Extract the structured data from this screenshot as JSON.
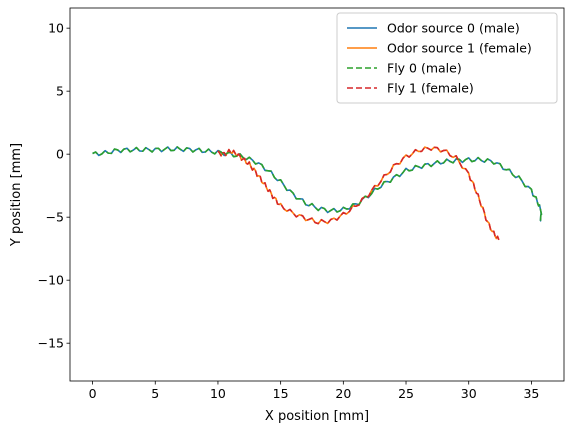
{
  "chart_data": {
    "type": "line",
    "title": "",
    "xlabel": "X position [mm]",
    "ylabel": "Y position [mm]",
    "xlim": [
      -1.8,
      37.6
    ],
    "ylim": [
      -18,
      11.6
    ],
    "xticks": [
      0,
      5,
      10,
      15,
      20,
      25,
      30,
      35
    ],
    "yticks": [
      10,
      5,
      0,
      -5,
      -10,
      -15
    ],
    "ytick_labels": [
      "10",
      "5",
      "0",
      "−5",
      "−10",
      "−15"
    ],
    "grid": false,
    "legend_position": "top-right",
    "series": [
      {
        "name": "Odor source 0 (male)",
        "color": "#1f77b4",
        "dash": "solid",
        "points": [
          [
            0,
            0
          ],
          [
            1,
            0.1
          ],
          [
            2,
            0.3
          ],
          [
            3,
            0.35
          ],
          [
            4,
            0.35
          ],
          [
            5,
            0.35
          ],
          [
            6,
            0.4
          ],
          [
            7,
            0.4
          ],
          [
            8,
            0.35
          ],
          [
            9,
            0.25
          ],
          [
            10,
            0.15
          ],
          [
            11,
            0.0
          ],
          [
            12,
            -0.2
          ],
          [
            13,
            -0.6
          ],
          [
            14,
            -1.3
          ],
          [
            15,
            -2.2
          ],
          [
            16,
            -3.2
          ],
          [
            17,
            -3.9
          ],
          [
            18,
            -4.3
          ],
          [
            19,
            -4.5
          ],
          [
            20,
            -4.4
          ],
          [
            21,
            -4.0
          ],
          [
            22,
            -3.3
          ],
          [
            23,
            -2.5
          ],
          [
            24,
            -1.9
          ],
          [
            25,
            -1.3
          ],
          [
            26,
            -1.0
          ],
          [
            27,
            -0.8
          ],
          [
            28,
            -0.6
          ],
          [
            29,
            -0.5
          ],
          [
            30,
            -0.45
          ],
          [
            31,
            -0.45
          ],
          [
            32,
            -0.6
          ],
          [
            33,
            -1.2
          ],
          [
            34,
            -1.9
          ],
          [
            35,
            -2.9
          ],
          [
            35.5,
            -3.8
          ],
          [
            35.8,
            -4.6
          ],
          [
            35.7,
            -5.3
          ]
        ]
      },
      {
        "name": "Odor source 1 (female)",
        "color": "#ff7f0e",
        "dash": "solid",
        "points": [
          [
            10,
            0.1
          ],
          [
            10.5,
            0.0
          ],
          [
            11,
            0.25
          ],
          [
            11.5,
            0.0
          ],
          [
            12,
            -0.4
          ],
          [
            12.5,
            -0.8
          ],
          [
            13,
            -1.4
          ],
          [
            13.5,
            -2.1
          ],
          [
            14,
            -2.8
          ],
          [
            14.5,
            -3.5
          ],
          [
            15,
            -4.1
          ],
          [
            16,
            -4.7
          ],
          [
            17,
            -5.1
          ],
          [
            18,
            -5.4
          ],
          [
            19,
            -5.3
          ],
          [
            20,
            -4.8
          ],
          [
            21,
            -4.1
          ],
          [
            22,
            -3.2
          ],
          [
            23,
            -2.1
          ],
          [
            24,
            -1.0
          ],
          [
            25,
            -0.2
          ],
          [
            26,
            0.3
          ],
          [
            27,
            0.5
          ],
          [
            28,
            0.3
          ],
          [
            29,
            -0.3
          ],
          [
            30,
            -1.6
          ],
          [
            30.5,
            -2.7
          ],
          [
            31,
            -4.0
          ],
          [
            31.5,
            -5.4
          ],
          [
            32,
            -6.3
          ],
          [
            32.4,
            -6.8
          ]
        ]
      },
      {
        "name": "Fly 0 (male)",
        "color": "#2ca02c",
        "dash": "dashed",
        "points": [
          [
            0,
            0
          ],
          [
            1,
            0.1
          ],
          [
            2,
            0.3
          ],
          [
            3,
            0.35
          ],
          [
            4,
            0.35
          ],
          [
            5,
            0.35
          ],
          [
            6,
            0.4
          ],
          [
            7,
            0.4
          ],
          [
            8,
            0.35
          ],
          [
            9,
            0.25
          ],
          [
            10,
            0.15
          ],
          [
            11,
            0.0
          ],
          [
            12,
            -0.2
          ],
          [
            13,
            -0.6
          ],
          [
            14,
            -1.3
          ],
          [
            15,
            -2.2
          ],
          [
            16,
            -3.2
          ],
          [
            17,
            -3.9
          ],
          [
            18,
            -4.3
          ],
          [
            19,
            -4.5
          ],
          [
            20,
            -4.4
          ],
          [
            21,
            -4.0
          ],
          [
            22,
            -3.3
          ],
          [
            23,
            -2.5
          ],
          [
            24,
            -1.9
          ],
          [
            25,
            -1.3
          ],
          [
            26,
            -1.0
          ],
          [
            27,
            -0.8
          ],
          [
            28,
            -0.6
          ],
          [
            29,
            -0.5
          ],
          [
            30,
            -0.45
          ],
          [
            31,
            -0.45
          ],
          [
            32,
            -0.6
          ],
          [
            33,
            -1.2
          ],
          [
            34,
            -1.9
          ],
          [
            35,
            -2.9
          ],
          [
            35.5,
            -3.8
          ],
          [
            35.8,
            -4.6
          ],
          [
            35.7,
            -5.3
          ]
        ]
      },
      {
        "name": "Fly 1 (female)",
        "color": "#d62728",
        "dash": "dashed",
        "points": [
          [
            10,
            0.1
          ],
          [
            10.5,
            0.0
          ],
          [
            11,
            0.25
          ],
          [
            11.5,
            0.0
          ],
          [
            12,
            -0.4
          ],
          [
            12.5,
            -0.8
          ],
          [
            13,
            -1.4
          ],
          [
            13.5,
            -2.1
          ],
          [
            14,
            -2.8
          ],
          [
            14.5,
            -3.5
          ],
          [
            15,
            -4.1
          ],
          [
            16,
            -4.7
          ],
          [
            17,
            -5.1
          ],
          [
            18,
            -5.4
          ],
          [
            19,
            -5.3
          ],
          [
            20,
            -4.8
          ],
          [
            21,
            -4.1
          ],
          [
            22,
            -3.2
          ],
          [
            23,
            -2.1
          ],
          [
            24,
            -1.0
          ],
          [
            25,
            -0.2
          ],
          [
            26,
            0.3
          ],
          [
            27,
            0.5
          ],
          [
            28,
            0.3
          ],
          [
            29,
            -0.3
          ],
          [
            30,
            -1.6
          ],
          [
            30.5,
            -2.7
          ],
          [
            31,
            -4.0
          ],
          [
            31.5,
            -5.4
          ],
          [
            32,
            -6.3
          ],
          [
            32.4,
            -6.8
          ]
        ]
      }
    ]
  }
}
